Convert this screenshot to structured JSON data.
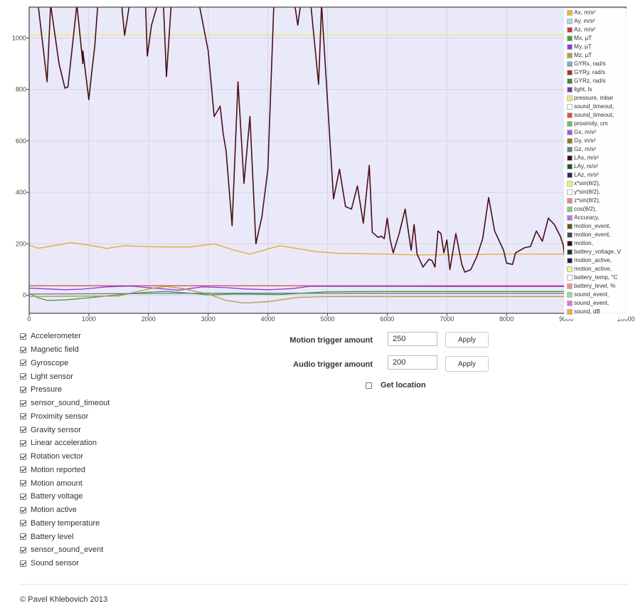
{
  "chart_data": {
    "type": "line",
    "xlim": [
      0,
      10000
    ],
    "ylim": [
      -70,
      1120
    ],
    "x_ticks": [
      0,
      1000,
      2000,
      3000,
      4000,
      5000,
      6000,
      7000,
      8000,
      9000,
      10000
    ],
    "x_tick_labels": [
      "0",
      "1000",
      "2000",
      "3000",
      "4000",
      "5000",
      "6000",
      "7000",
      "8000",
      "9000",
      "10000"
    ],
    "y_ticks": [
      0,
      200,
      400,
      600,
      800,
      1000
    ],
    "y_tick_labels": [
      "0",
      "200",
      "400",
      "600",
      "800",
      "1000"
    ],
    "grid": true,
    "legend_position": "right",
    "plot_background": "#e9e9fa",
    "series": [
      {
        "name": "pressure, mbar",
        "color": "#f5e67a",
        "points": [
          [
            0,
            1013
          ],
          [
            9000,
            1013
          ]
        ]
      },
      {
        "name": "light, lx",
        "color": "#e8a830",
        "points": [
          [
            0,
            195
          ],
          [
            150,
            183
          ],
          [
            400,
            192
          ],
          [
            700,
            205
          ],
          [
            1000,
            195
          ],
          [
            1300,
            182
          ],
          [
            1600,
            193
          ],
          [
            1900,
            190
          ],
          [
            2300,
            188
          ],
          [
            2700,
            188
          ],
          [
            3100,
            200
          ],
          [
            3400,
            178
          ],
          [
            3700,
            160
          ],
          [
            4200,
            193
          ],
          [
            4800,
            170
          ],
          [
            5200,
            163
          ],
          [
            6000,
            160
          ],
          [
            6500,
            157
          ],
          [
            7000,
            158
          ],
          [
            8000,
            160
          ],
          [
            9000,
            160
          ]
        ]
      },
      {
        "name": "sound_timeout,",
        "color": "#e05050",
        "points": [
          [
            0,
            37
          ],
          [
            9000,
            37
          ]
        ]
      },
      {
        "name": "My, µT",
        "color": "#8c3ad9",
        "points": [
          [
            0,
            28
          ],
          [
            300,
            25
          ],
          [
            600,
            22
          ],
          [
            900,
            24
          ],
          [
            1300,
            33
          ],
          [
            1700,
            36
          ],
          [
            2100,
            28
          ],
          [
            2500,
            20
          ],
          [
            2900,
            33
          ],
          [
            3300,
            30
          ],
          [
            3600,
            25
          ],
          [
            4000,
            22
          ],
          [
            4400,
            26
          ],
          [
            4700,
            35
          ],
          [
            6000,
            35
          ],
          [
            7500,
            34
          ],
          [
            9000,
            34
          ]
        ]
      },
      {
        "name": "Mx, µT",
        "color": "#3aa03a",
        "points": [
          [
            0,
            8
          ],
          [
            150,
            -10
          ],
          [
            300,
            -20
          ],
          [
            600,
            -18
          ],
          [
            900,
            -12
          ],
          [
            1200,
            -5
          ],
          [
            1600,
            5
          ],
          [
            2000,
            12
          ],
          [
            2300,
            15
          ],
          [
            2600,
            10
          ],
          [
            3000,
            2
          ],
          [
            3500,
            5
          ],
          [
            4200,
            3
          ],
          [
            5000,
            14
          ],
          [
            6000,
            15
          ],
          [
            7500,
            15
          ],
          [
            9000,
            15
          ]
        ]
      },
      {
        "name": "Mz, µT",
        "color": "#b89a40",
        "points": [
          [
            0,
            -5
          ],
          [
            1500,
            -3
          ],
          [
            2000,
            25
          ],
          [
            2300,
            35
          ],
          [
            2600,
            25
          ],
          [
            3000,
            5
          ],
          [
            3300,
            -20
          ],
          [
            3600,
            -30
          ],
          [
            4000,
            -25
          ],
          [
            4500,
            -8
          ],
          [
            5000,
            -5
          ],
          [
            6000,
            -5
          ],
          [
            9000,
            -5
          ]
        ]
      },
      {
        "name": "Gz, m/s²",
        "color": "#6a7a88",
        "points": [
          [
            0,
            5
          ],
          [
            3000,
            8
          ],
          [
            5000,
            8
          ],
          [
            9000,
            8
          ]
        ]
      },
      {
        "name": "LAx, m/s²",
        "color": "#4a0e14",
        "points": [
          [
            150,
            1130
          ],
          [
            300,
            830
          ],
          [
            360,
            1130
          ],
          [
            500,
            900
          ],
          [
            600,
            805
          ],
          [
            650,
            810
          ],
          [
            800,
            1130
          ],
          [
            900,
            900
          ],
          [
            900,
            950
          ],
          [
            1000,
            760
          ],
          [
            1050,
            870
          ],
          [
            1100,
            970
          ],
          [
            1150,
            1130
          ],
          [
            1550,
            1130
          ],
          [
            1600,
            1010
          ],
          [
            1680,
            1130
          ],
          [
            1950,
            1130
          ],
          [
            1980,
            930
          ],
          [
            2050,
            1050
          ],
          [
            2150,
            1130
          ],
          [
            2250,
            1130
          ],
          [
            2300,
            850
          ],
          [
            2380,
            1130
          ],
          [
            2850,
            1130
          ],
          [
            3000,
            950
          ],
          [
            3100,
            695
          ],
          [
            3200,
            735
          ],
          [
            3250,
            630
          ],
          [
            3300,
            560
          ],
          [
            3400,
            270
          ],
          [
            3500,
            830
          ],
          [
            3600,
            435
          ],
          [
            3700,
            695
          ],
          [
            3800,
            200
          ],
          [
            3900,
            305
          ],
          [
            4000,
            490
          ],
          [
            4100,
            1130
          ],
          [
            4450,
            1130
          ],
          [
            4500,
            1050
          ],
          [
            4550,
            1130
          ],
          [
            4720,
            1130
          ],
          [
            4850,
            820
          ],
          [
            4900,
            1130
          ],
          [
            5100,
            375
          ],
          [
            5200,
            490
          ],
          [
            5300,
            345
          ],
          [
            5400,
            335
          ],
          [
            5500,
            425
          ],
          [
            5600,
            280
          ],
          [
            5700,
            505
          ],
          [
            5750,
            245
          ],
          [
            5850,
            225
          ],
          [
            5900,
            230
          ],
          [
            5950,
            220
          ],
          [
            6000,
            300
          ],
          [
            6050,
            215
          ],
          [
            6100,
            165
          ],
          [
            6200,
            240
          ],
          [
            6300,
            335
          ],
          [
            6400,
            175
          ],
          [
            6450,
            275
          ],
          [
            6500,
            160
          ],
          [
            6600,
            110
          ],
          [
            6700,
            140
          ],
          [
            6750,
            135
          ],
          [
            6800,
            110
          ],
          [
            6850,
            250
          ],
          [
            6900,
            240
          ],
          [
            6950,
            165
          ],
          [
            7000,
            215
          ],
          [
            7050,
            100
          ],
          [
            7150,
            240
          ],
          [
            7250,
            120
          ],
          [
            7300,
            90
          ],
          [
            7400,
            100
          ],
          [
            7500,
            150
          ],
          [
            7600,
            220
          ],
          [
            7700,
            380
          ],
          [
            7800,
            250
          ],
          [
            7900,
            200
          ],
          [
            7950,
            175
          ],
          [
            8000,
            125
          ],
          [
            8100,
            120
          ],
          [
            8150,
            165
          ],
          [
            8300,
            185
          ],
          [
            8400,
            190
          ],
          [
            8500,
            250
          ],
          [
            8600,
            210
          ],
          [
            8700,
            300
          ],
          [
            8800,
            275
          ],
          [
            8900,
            230
          ],
          [
            8950,
            195
          ],
          [
            9000,
            100
          ],
          [
            9050,
            120
          ]
        ]
      }
    ]
  },
  "legend": [
    {
      "label": "Ax, m/s²",
      "color": "#f0b030"
    },
    {
      "label": "Ay, m/s²",
      "color": "#a8d8f0"
    },
    {
      "label": "Az, m/s²",
      "color": "#c03b3b"
    },
    {
      "label": "Mx, µT",
      "color": "#3aa03a"
    },
    {
      "label": "My, µT",
      "color": "#8c3ad9"
    },
    {
      "label": "Mz, µT",
      "color": "#b89a40"
    },
    {
      "label": "GYRx, rad/s",
      "color": "#7fa8c0"
    },
    {
      "label": "GYRy, rad/s",
      "color": "#a83232"
    },
    {
      "label": "GYRz, rad/s",
      "color": "#3a8a3a"
    },
    {
      "label": "light, lx",
      "color": "#6a3ab0"
    },
    {
      "label": "pressure, mbar",
      "color": "#f5e67a"
    },
    {
      "label": "sound_timeout,",
      "color": "#ffffff"
    },
    {
      "label": "sound_timeout,",
      "color": "#e05050"
    },
    {
      "label": "proximity, cm",
      "color": "#6ac06a"
    },
    {
      "label": "Gx, m/s²",
      "color": "#b050e0"
    },
    {
      "label": "Gy, m/s²",
      "color": "#8a7a30"
    },
    {
      "label": "Gz, m/s²",
      "color": "#6a7a88"
    },
    {
      "label": "LAx, m/s²",
      "color": "#4a0e14"
    },
    {
      "label": "LAy, m/s²",
      "color": "#1e5a1e"
    },
    {
      "label": "LAz, m/s²",
      "color": "#3a1e6a"
    },
    {
      "label": "x*sin(θ/2),",
      "color": "#f5ee60"
    },
    {
      "label": "y*sin(θ/2),",
      "color": "#ffffff"
    },
    {
      "label": "z*sin(θ/2),",
      "color": "#f08080"
    },
    {
      "label": "cos(θ/2),",
      "color": "#7ad07a"
    },
    {
      "label": "Accuracy,",
      "color": "#c070e8"
    },
    {
      "label": "motion_event,",
      "color": "#5a5a1e"
    },
    {
      "label": "motion_event,",
      "color": "#3a4a5a"
    },
    {
      "label": "motion,",
      "color": "#3a0a0a"
    },
    {
      "label": "battery_voltage, V",
      "color": "#1e3a1e"
    },
    {
      "label": "motion_active,",
      "color": "#2a1a5a"
    },
    {
      "label": "motion_active,",
      "color": "#f8f080"
    },
    {
      "label": "battery_temp, °C",
      "color": "#ffffff"
    },
    {
      "label": "battery_level, %",
      "color": "#f09090"
    },
    {
      "label": "sound_event,",
      "color": "#90e090"
    },
    {
      "label": "sound_event,",
      "color": "#e070e8"
    },
    {
      "label": "sound, dB",
      "color": "#f0b030"
    }
  ],
  "sensors": [
    {
      "label": "Accelerometer",
      "checked": true
    },
    {
      "label": "Magnetic field",
      "checked": true
    },
    {
      "label": "Gyroscope",
      "checked": true
    },
    {
      "label": "Light sensor",
      "checked": true
    },
    {
      "label": "Pressure",
      "checked": true
    },
    {
      "label": "sensor_sound_timeout",
      "checked": true
    },
    {
      "label": "Proximity sensor",
      "checked": true
    },
    {
      "label": "Gravity sensor",
      "checked": true
    },
    {
      "label": "Linear acceleration",
      "checked": true
    },
    {
      "label": "Rotation vector",
      "checked": true
    },
    {
      "label": "Motion reported",
      "checked": true
    },
    {
      "label": "Motion amount",
      "checked": true
    },
    {
      "label": "Battery voltage",
      "checked": true
    },
    {
      "label": "Motion active",
      "checked": true
    },
    {
      "label": "Battery temperature",
      "checked": true
    },
    {
      "label": "Battery level",
      "checked": true
    },
    {
      "label": "sensor_sound_event",
      "checked": true
    },
    {
      "label": "Sound sensor",
      "checked": true
    }
  ],
  "controls": {
    "motion": {
      "label": "Motion trigger amount",
      "value": "250",
      "button": "Apply"
    },
    "audio": {
      "label": "Audio trigger amount",
      "value": "200",
      "button": "Apply"
    },
    "location": {
      "label": "Get location",
      "checked": false
    }
  },
  "footer": {
    "text": "© Pavel Khlebovich 2013"
  }
}
